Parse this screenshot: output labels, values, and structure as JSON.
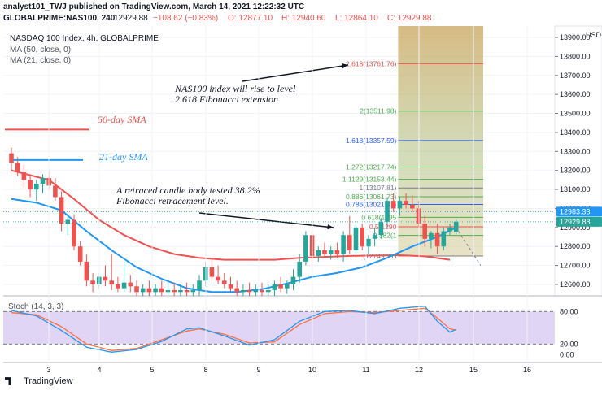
{
  "header": {
    "publisher": "analyst101_TWJ published on TradingView.com, March 14, 2021 12:22:32 UTC",
    "symbol": "GLOBALPRIME:NAS100, 240",
    "last": "12929.88",
    "change": "−108.62 (−0.83%)",
    "open": "O: 12877.10",
    "high": "H: 12940.60",
    "low": "L: 12864.10",
    "close": "C: 12929.88"
  },
  "legend": {
    "title": "NASDAQ 100 Index, 4h, GLOBALPRIME",
    "ma50": "MA (50, close, 0)",
    "ma21": "MA (21, close, 0)",
    "stoch": "Stoch (14, 3, 3)"
  },
  "annotations": {
    "sma50": "50-day SMA",
    "sma21": "21-day SMA",
    "fib_note_1": "NAS100 index will rise to level",
    "fib_note_2": "2.618 Fibonacci extension",
    "candle_note_1": "A retraced candle body  tested 38.2%",
    "candle_note_2": "Fibonacci retracement level."
  },
  "footer": {
    "brand": "TradingView"
  },
  "colors": {
    "up": "#26a69a",
    "down": "#ef5350",
    "ma50": "#ef5350",
    "ma21": "#2196f3",
    "stoch_band": "#e1d5f5",
    "stoch_k": "#2196f3",
    "stoch_d": "#ff7043",
    "fib_top": "#c9a45a",
    "fib_bottom": "#d9cfa0"
  },
  "chart_data": {
    "type": "candlestick",
    "price_axis": {
      "currency": "USD",
      "ticks": [
        13900,
        13800,
        13700,
        13600,
        13500,
        13400,
        13300,
        13200,
        13100,
        13000,
        12900,
        12800,
        12700,
        12600
      ],
      "tick_labels": [
        "13900.00",
        "13800.00",
        "13700.00",
        "13600.00",
        "13500.00",
        "13400.00",
        "13300.00",
        "13200.00",
        "13100.00",
        "13000.00",
        "12900.00",
        "12800.00",
        "12700.00",
        "12600.00"
      ],
      "ylim": [
        12540,
        13960
      ],
      "markers": [
        {
          "value": 12983.33,
          "label": "12983.33",
          "color": "#2196f3"
        },
        {
          "value": 12929.88,
          "label": "12929.88",
          "color": "#26a69a"
        }
      ]
    },
    "x_axis": {
      "ticks": [
        "3",
        "4",
        "5",
        "8",
        "9",
        "10",
        "11",
        "12",
        "15",
        "16"
      ]
    },
    "candles": [
      {
        "x": 0,
        "o": 13290,
        "h": 13320,
        "l": 13200,
        "c": 13240
      },
      {
        "x": 1,
        "o": 13240,
        "h": 13270,
        "l": 13170,
        "c": 13190
      },
      {
        "x": 2,
        "o": 13190,
        "h": 13230,
        "l": 13110,
        "c": 13150
      },
      {
        "x": 3,
        "o": 13150,
        "h": 13180,
        "l": 13060,
        "c": 13100
      },
      {
        "x": 4,
        "o": 13100,
        "h": 13150,
        "l": 13040,
        "c": 13130
      },
      {
        "x": 5,
        "o": 13130,
        "h": 13180,
        "l": 13080,
        "c": 13160
      },
      {
        "x": 6,
        "o": 13160,
        "h": 13200,
        "l": 13100,
        "c": 13120
      },
      {
        "x": 7,
        "o": 13120,
        "h": 13160,
        "l": 13040,
        "c": 13060
      },
      {
        "x": 8,
        "o": 13060,
        "h": 13090,
        "l": 12880,
        "c": 12920
      },
      {
        "x": 9,
        "o": 12920,
        "h": 12960,
        "l": 12860,
        "c": 12940
      },
      {
        "x": 10,
        "o": 12940,
        "h": 12970,
        "l": 12780,
        "c": 12800
      },
      {
        "x": 11,
        "o": 12800,
        "h": 12830,
        "l": 12700,
        "c": 12720
      },
      {
        "x": 12,
        "o": 12720,
        "h": 12760,
        "l": 12590,
        "c": 12620
      },
      {
        "x": 13,
        "o": 12620,
        "h": 12660,
        "l": 12560,
        "c": 12600
      },
      {
        "x": 14,
        "o": 12600,
        "h": 12660,
        "l": 12580,
        "c": 12640
      },
      {
        "x": 15,
        "o": 12640,
        "h": 12700,
        "l": 12590,
        "c": 12620
      },
      {
        "x": 16,
        "o": 12620,
        "h": 12760,
        "l": 12570,
        "c": 12600
      },
      {
        "x": 17,
        "o": 12600,
        "h": 12640,
        "l": 12560,
        "c": 12580
      },
      {
        "x": 18,
        "o": 12580,
        "h": 12720,
        "l": 12560,
        "c": 12610
      },
      {
        "x": 19,
        "o": 12610,
        "h": 12650,
        "l": 12560,
        "c": 12590
      },
      {
        "x": 20,
        "o": 12590,
        "h": 12620,
        "l": 12540,
        "c": 12560
      },
      {
        "x": 21,
        "o": 12560,
        "h": 12600,
        "l": 12540,
        "c": 12580
      },
      {
        "x": 22,
        "o": 12580,
        "h": 12620,
        "l": 12540,
        "c": 12560
      },
      {
        "x": 23,
        "o": 12560,
        "h": 12600,
        "l": 12540,
        "c": 12580
      },
      {
        "x": 24,
        "o": 12580,
        "h": 12620,
        "l": 12540,
        "c": 12560
      },
      {
        "x": 25,
        "o": 12560,
        "h": 12600,
        "l": 12540,
        "c": 12570
      },
      {
        "x": 26,
        "o": 12570,
        "h": 12610,
        "l": 12540,
        "c": 12560
      },
      {
        "x": 27,
        "o": 12560,
        "h": 12600,
        "l": 12540,
        "c": 12570
      },
      {
        "x": 28,
        "o": 12570,
        "h": 12610,
        "l": 12540,
        "c": 12560
      },
      {
        "x": 29,
        "o": 12560,
        "h": 12600,
        "l": 12540,
        "c": 12570
      },
      {
        "x": 30,
        "o": 12570,
        "h": 12650,
        "l": 12540,
        "c": 12620
      },
      {
        "x": 31,
        "o": 12620,
        "h": 12720,
        "l": 12590,
        "c": 12690
      },
      {
        "x": 32,
        "o": 12690,
        "h": 12740,
        "l": 12620,
        "c": 12640
      },
      {
        "x": 33,
        "o": 12640,
        "h": 12700,
        "l": 12600,
        "c": 12620
      },
      {
        "x": 34,
        "o": 12620,
        "h": 12660,
        "l": 12580,
        "c": 12600
      },
      {
        "x": 35,
        "o": 12600,
        "h": 12640,
        "l": 12560,
        "c": 12580
      },
      {
        "x": 36,
        "o": 12580,
        "h": 12620,
        "l": 12540,
        "c": 12560
      },
      {
        "x": 37,
        "o": 12560,
        "h": 12600,
        "l": 12540,
        "c": 12570
      },
      {
        "x": 38,
        "o": 12570,
        "h": 12610,
        "l": 12540,
        "c": 12560
      },
      {
        "x": 39,
        "o": 12560,
        "h": 12600,
        "l": 12540,
        "c": 12570
      },
      {
        "x": 40,
        "o": 12570,
        "h": 12610,
        "l": 12540,
        "c": 12560
      },
      {
        "x": 41,
        "o": 12560,
        "h": 12600,
        "l": 12540,
        "c": 12570
      },
      {
        "x": 42,
        "o": 12570,
        "h": 12620,
        "l": 12540,
        "c": 12600
      },
      {
        "x": 43,
        "o": 12600,
        "h": 12640,
        "l": 12560,
        "c": 12580
      },
      {
        "x": 44,
        "o": 12580,
        "h": 12620,
        "l": 12550,
        "c": 12600
      },
      {
        "x": 45,
        "o": 12600,
        "h": 12680,
        "l": 12570,
        "c": 12640
      },
      {
        "x": 46,
        "o": 12640,
        "h": 12760,
        "l": 12610,
        "c": 12720
      },
      {
        "x": 47,
        "o": 12720,
        "h": 12880,
        "l": 12700,
        "c": 12860
      },
      {
        "x": 48,
        "o": 12860,
        "h": 12880,
        "l": 12720,
        "c": 12750
      },
      {
        "x": 49,
        "o": 12750,
        "h": 12800,
        "l": 12720,
        "c": 12780
      },
      {
        "x": 50,
        "o": 12780,
        "h": 12820,
        "l": 12740,
        "c": 12760
      },
      {
        "x": 51,
        "o": 12760,
        "h": 12800,
        "l": 12730,
        "c": 12780
      },
      {
        "x": 52,
        "o": 12780,
        "h": 12820,
        "l": 12740,
        "c": 12760
      },
      {
        "x": 53,
        "o": 12760,
        "h": 12880,
        "l": 12720,
        "c": 12860
      },
      {
        "x": 54,
        "o": 12860,
        "h": 12960,
        "l": 12760,
        "c": 12780
      },
      {
        "x": 55,
        "o": 12780,
        "h": 12920,
        "l": 12760,
        "c": 12900
      },
      {
        "x": 56,
        "o": 12900,
        "h": 12920,
        "l": 12780,
        "c": 12800
      },
      {
        "x": 57,
        "o": 12800,
        "h": 12860,
        "l": 12760,
        "c": 12840
      },
      {
        "x": 58,
        "o": 12840,
        "h": 12900,
        "l": 12800,
        "c": 12860
      },
      {
        "x": 59,
        "o": 12860,
        "h": 12950,
        "l": 12840,
        "c": 12930
      },
      {
        "x": 60,
        "o": 12930,
        "h": 13060,
        "l": 12900,
        "c": 13040
      },
      {
        "x": 61,
        "o": 13040,
        "h": 13080,
        "l": 12980,
        "c": 13000
      },
      {
        "x": 62,
        "o": 13000,
        "h": 13060,
        "l": 12960,
        "c": 13040
      },
      {
        "x": 63,
        "o": 13040,
        "h": 13080,
        "l": 13000,
        "c": 13020
      },
      {
        "x": 64,
        "o": 13020,
        "h": 13070,
        "l": 12980,
        "c": 13000
      },
      {
        "x": 65,
        "o": 13000,
        "h": 13040,
        "l": 12900,
        "c": 12920
      },
      {
        "x": 66,
        "o": 12920,
        "h": 12960,
        "l": 12800,
        "c": 12840
      },
      {
        "x": 67,
        "o": 12840,
        "h": 12880,
        "l": 12790,
        "c": 12870
      },
      {
        "x": 68,
        "o": 12870,
        "h": 12920,
        "l": 12760,
        "c": 12800
      },
      {
        "x": 69,
        "o": 12800,
        "h": 12900,
        "l": 12780,
        "c": 12880
      },
      {
        "x": 70,
        "o": 12880,
        "h": 12920,
        "l": 12860,
        "c": 12900
      },
      {
        "x": 71,
        "o": 12877.1,
        "h": 12940.6,
        "l": 12864.1,
        "c": 12929.88
      }
    ],
    "ma50": [
      [
        0,
        13200
      ],
      [
        6,
        13150
      ],
      [
        10,
        13050
      ],
      [
        14,
        12940
      ],
      [
        18,
        12860
      ],
      [
        22,
        12800
      ],
      [
        26,
        12760
      ],
      [
        30,
        12740
      ],
      [
        34,
        12730
      ],
      [
        38,
        12730
      ],
      [
        42,
        12730
      ],
      [
        46,
        12740
      ],
      [
        50,
        12745
      ],
      [
        54,
        12750
      ],
      [
        58,
        12752
      ],
      [
        62,
        12754
      ],
      [
        66,
        12748
      ],
      [
        70,
        12730
      ]
    ],
    "ma21": [
      [
        0,
        13050
      ],
      [
        4,
        13030
      ],
      [
        8,
        12990
      ],
      [
        12,
        12880
      ],
      [
        16,
        12780
      ],
      [
        20,
        12690
      ],
      [
        24,
        12630
      ],
      [
        28,
        12580
      ],
      [
        32,
        12560
      ],
      [
        36,
        12560
      ],
      [
        40,
        12575
      ],
      [
        44,
        12605
      ],
      [
        48,
        12640
      ],
      [
        52,
        12660
      ],
      [
        56,
        12690
      ],
      [
        60,
        12740
      ],
      [
        64,
        12800
      ],
      [
        68,
        12850
      ],
      [
        71,
        12900
      ]
    ],
    "fibonacci": [
      {
        "ratio": "2.618",
        "value": 13761.76,
        "label": "2.618(13761.76)",
        "color": "#ef5350"
      },
      {
        "ratio": "2",
        "value": 13511.98,
        "label": "2(13511.98)",
        "color": "#4caf50"
      },
      {
        "ratio": "1.618",
        "value": 13357.59,
        "label": "1.618(13357.59)",
        "color": "#2962ff"
      },
      {
        "ratio": "1.272",
        "value": 13217.74,
        "label": "1.272(13217.74)",
        "color": "#4caf50"
      },
      {
        "ratio": "1.1129",
        "value": 13153.44,
        "label": "1.1129(13153.44)",
        "color": "#4caf50"
      },
      {
        "ratio": "1",
        "value": 13107.81,
        "label": "1(13107.81)",
        "color": "#787b86"
      },
      {
        "ratio": "0.886",
        "value": 13061.73,
        "label": "0.886(13061.73)",
        "color": "#4caf50"
      },
      {
        "ratio": "0.786",
        "value": 13021.31,
        "label": "0.786(13021.31)",
        "color": "#2962ff"
      },
      {
        "ratio": "0.618",
        "value": 12953.52,
        "label": "0.618(1295",
        "color": "#4caf50"
      },
      {
        "ratio": "0.5",
        "value": 12903.72,
        "label": "0.5(1290",
        "color": "#ef5350"
      },
      {
        "ratio": "0.382",
        "value": 12858.03,
        "label": "0.382(1",
        "color": "#4caf50"
      },
      {
        "ratio": "0",
        "value": 12749.71,
        "label": "(12749.71)",
        "color": "#787b86"
      }
    ],
    "ref_lines": [
      {
        "name": "sma50-line",
        "value": 13415,
        "color": "#ef5350"
      },
      {
        "name": "sma21-line",
        "value": 13255,
        "color": "#2196f3"
      }
    ],
    "stochastic": {
      "ticks": [
        80,
        20,
        0
      ],
      "tick_labels": [
        "80.00",
        "20.00",
        "0.00"
      ],
      "ylim": [
        -5,
        100
      ],
      "k": [
        [
          0,
          82
        ],
        [
          4,
          72
        ],
        [
          8,
          45
        ],
        [
          12,
          14
        ],
        [
          16,
          5
        ],
        [
          20,
          10
        ],
        [
          24,
          25
        ],
        [
          28,
          48
        ],
        [
          30,
          50
        ],
        [
          34,
          35
        ],
        [
          38,
          18
        ],
        [
          42,
          28
        ],
        [
          46,
          62
        ],
        [
          50,
          80
        ],
        [
          54,
          82
        ],
        [
          58,
          76
        ],
        [
          62,
          86
        ],
        [
          66,
          90
        ],
        [
          68,
          62
        ],
        [
          70,
          42
        ],
        [
          71,
          47
        ]
      ],
      "d": [
        [
          0,
          78
        ],
        [
          4,
          74
        ],
        [
          8,
          52
        ],
        [
          12,
          20
        ],
        [
          16,
          8
        ],
        [
          20,
          12
        ],
        [
          24,
          28
        ],
        [
          28,
          44
        ],
        [
          30,
          48
        ],
        [
          34,
          38
        ],
        [
          38,
          22
        ],
        [
          42,
          24
        ],
        [
          46,
          56
        ],
        [
          50,
          76
        ],
        [
          54,
          80
        ],
        [
          58,
          78
        ],
        [
          62,
          82
        ],
        [
          66,
          86
        ],
        [
          68,
          68
        ],
        [
          70,
          48
        ],
        [
          71,
          46
        ]
      ]
    }
  }
}
